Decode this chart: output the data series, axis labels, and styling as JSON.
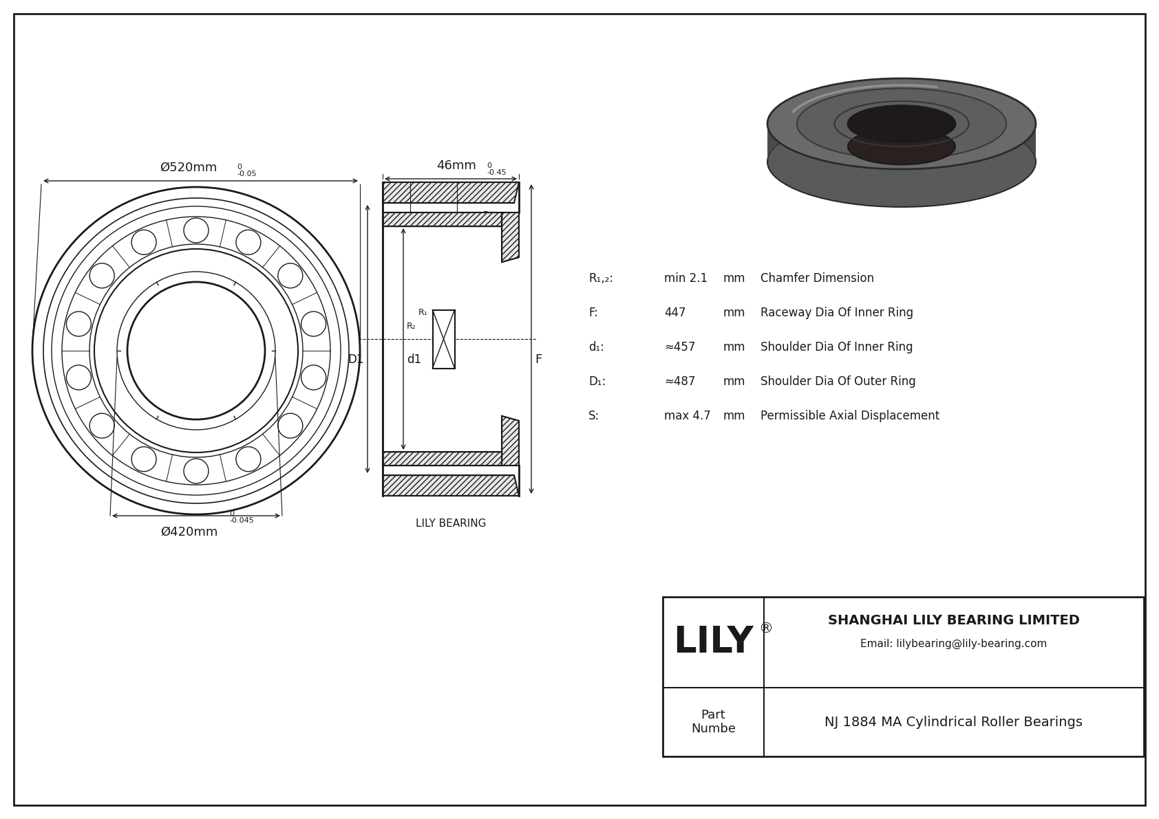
{
  "white": "#ffffff",
  "black": "#000000",
  "line_color": "#1a1a1a",
  "title": "NJ 1884 MA Cylindrical Roller Bearings",
  "company": "SHANGHAI LILY BEARING LIMITED",
  "email": "Email: lilybearing@lily-bearing.com",
  "brand": "LILY",
  "part_label": "Part\nNumbe",
  "lily_bearing_label": "LILY BEARING",
  "dim_outer": "Ø520mm",
  "dim_inner": "Ø420mm",
  "dim_width": "46mm",
  "label_S": "S",
  "label_D1": "D1",
  "label_d1": "d1",
  "label_F": "F",
  "label_R1u": "R₂",
  "label_R1l": "R₁",
  "label_R2u": "R₁",
  "label_R2l": "R₂",
  "spec_rows": [
    {
      "param": "R₁,₂:",
      "value": "min 2.1",
      "unit": "mm",
      "desc": "Chamfer Dimension"
    },
    {
      "param": "F:",
      "value": "447",
      "unit": "mm",
      "desc": "Raceway Dia Of Inner Ring"
    },
    {
      "param": "d₁:",
      "value": "≈457",
      "unit": "mm",
      "desc": "Shoulder Dia Of Inner Ring"
    },
    {
      "param": "D₁:",
      "value": "≈487",
      "unit": "mm",
      "desc": "Shoulder Dia Of Outer Ring"
    },
    {
      "param": "S:",
      "value": "max 4.7",
      "unit": "mm",
      "desc": "Permissible Axial Displacement"
    }
  ]
}
